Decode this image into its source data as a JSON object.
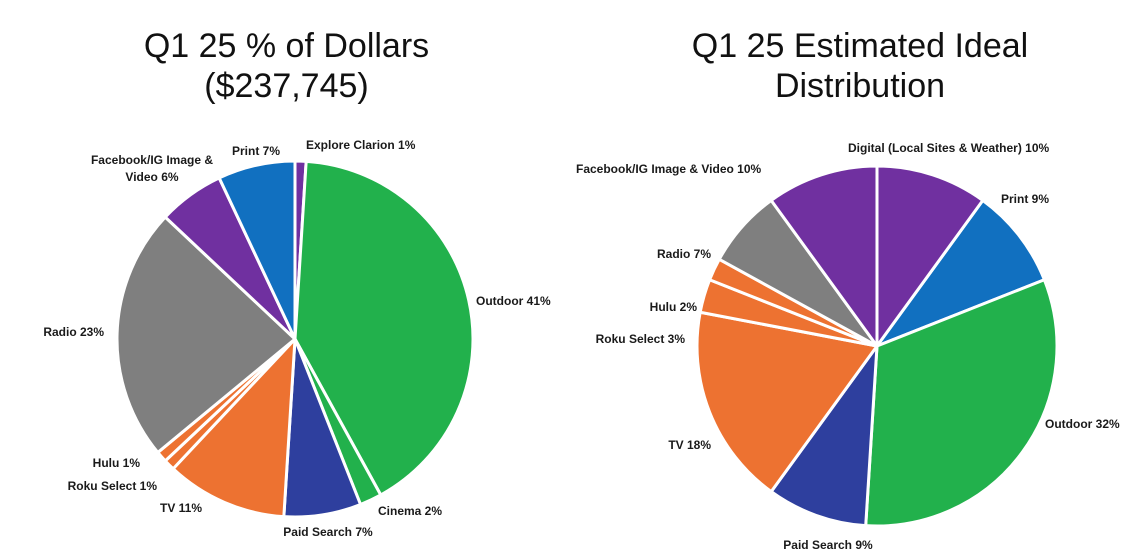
{
  "chart_data": [
    {
      "type": "pie",
      "title_lines": [
        "Q1 25 % of Dollars",
        "($237,745)"
      ],
      "slices": [
        {
          "label": "Explore Clarion 1%",
          "value": 1,
          "color": "#7030A0"
        },
        {
          "label": "Outdoor 41%",
          "value": 41,
          "color": "#22B14C"
        },
        {
          "label": "Cinema 2%",
          "value": 2,
          "color": "#22B14C"
        },
        {
          "label": "Paid Search 7%",
          "value": 7,
          "color": "#2E3F9E"
        },
        {
          "label": "TV  11%",
          "value": 11,
          "color": "#ED7231"
        },
        {
          "label": "Roku Select 1%",
          "value": 1,
          "color": "#ED7231"
        },
        {
          "label": "Hulu 1%",
          "value": 1,
          "color": "#ED7231"
        },
        {
          "label": "Radio 23%",
          "value": 23,
          "color": "#7F7F7F"
        },
        {
          "label": "Facebook/IG Image &",
          "label2": "Video 6%",
          "value": 6,
          "color": "#7030A0"
        },
        {
          "label": "Print 7%",
          "value": 7,
          "color": "#1170C0"
        }
      ]
    },
    {
      "type": "pie",
      "title_lines": [
        "Q1 25 Estimated Ideal",
        "Distribution"
      ],
      "slices": [
        {
          "label": "Print 9%",
          "value": 9,
          "color": "#1170C0"
        },
        {
          "label": "Outdoor 32%",
          "value": 32,
          "color": "#22B14C"
        },
        {
          "label": "Paid Search 9%",
          "value": 9,
          "color": "#2E3F9E"
        },
        {
          "label": "TV  18%",
          "value": 18,
          "color": "#ED7231"
        },
        {
          "label": "Roku Select 3%",
          "value": 3,
          "color": "#ED7231"
        },
        {
          "label": "Hulu 2%",
          "value": 2,
          "color": "#ED7231"
        },
        {
          "label": "Radio 7%",
          "value": 7,
          "color": "#7F7F7F"
        },
        {
          "label": "Facebook/IG Image & Video 10%",
          "value": 10,
          "color": "#7030A0"
        },
        {
          "label": "Digital (Local Sites & Weather) 10%",
          "value": 10,
          "color": "#7030A0"
        }
      ]
    }
  ]
}
